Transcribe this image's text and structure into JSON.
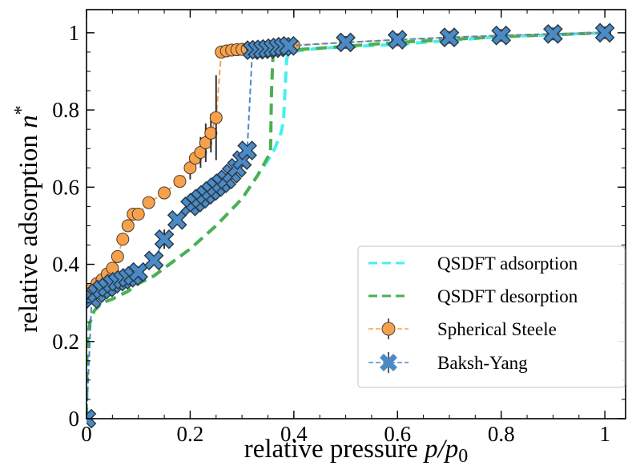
{
  "chart_data": {
    "type": "line",
    "xlabel": "relative pressure",
    "xlabel_math": "p/p",
    "xlabel_sub": "0",
    "ylabel": "relative adsorption",
    "ylabel_math": "n",
    "ylabel_sup": "*",
    "xlim": [
      0,
      1.04
    ],
    "ylim": [
      0,
      1.06
    ],
    "xticks": [
      0,
      0.2,
      0.4,
      0.6,
      0.8,
      1
    ],
    "xtick_labels": [
      "0",
      "0.2",
      "0.4",
      "0.6",
      "0.8",
      "1"
    ],
    "yticks": [
      0,
      0.2,
      0.4,
      0.6,
      0.8,
      1
    ],
    "ytick_labels": [
      "0",
      "0.2",
      "0.4",
      "0.6",
      "0.8",
      "1"
    ],
    "grid": false,
    "legend_position": "bottom-right",
    "series": [
      {
        "name": "QSDFT adsorption",
        "color": "#44f0ef",
        "style": "dashed",
        "x": [
          0,
          0.001,
          0.003,
          0.007,
          0.015,
          0.03,
          0.05,
          0.08,
          0.1,
          0.13,
          0.16,
          0.2,
          0.25,
          0.3,
          0.33,
          0.36,
          0.375,
          0.38,
          0.383,
          0.386,
          0.39,
          0.45,
          0.6,
          0.8,
          1.0
        ],
        "y": [
          0,
          0.17,
          0.22,
          0.25,
          0.28,
          0.3,
          0.31,
          0.33,
          0.35,
          0.37,
          0.4,
          0.44,
          0.5,
          0.57,
          0.63,
          0.69,
          0.74,
          0.77,
          0.85,
          0.93,
          0.95,
          0.96,
          0.97,
          0.99,
          1.0
        ]
      },
      {
        "name": "QSDFT desorption",
        "color": "#4caf50",
        "style": "dashed",
        "x": [
          0,
          0.001,
          0.003,
          0.007,
          0.015,
          0.03,
          0.05,
          0.08,
          0.1,
          0.13,
          0.16,
          0.2,
          0.25,
          0.3,
          0.33,
          0.355,
          0.357,
          0.36,
          0.39,
          0.45,
          0.6,
          0.8,
          1.0
        ],
        "y": [
          0,
          0.17,
          0.22,
          0.25,
          0.28,
          0.3,
          0.31,
          0.33,
          0.35,
          0.37,
          0.4,
          0.44,
          0.5,
          0.57,
          0.63,
          0.69,
          0.85,
          0.95,
          0.955,
          0.96,
          0.975,
          0.99,
          1.0
        ]
      },
      {
        "name": "Spherical Steele",
        "color": "#f7a14c",
        "marker": "circle",
        "x": [
          0.005,
          0.02,
          0.03,
          0.04,
          0.05,
          0.06,
          0.07,
          0.08,
          0.09,
          0.1,
          0.12,
          0.15,
          0.18,
          0.2,
          0.21,
          0.22,
          0.23,
          0.24,
          0.25,
          0.26,
          0.27,
          0.28,
          0.29,
          0.3,
          0.31,
          0.32,
          0.33,
          0.34,
          0.35,
          0.36,
          0.37,
          0.38,
          0.39,
          0.4,
          0.5,
          0.6,
          0.7,
          0.8,
          0.9,
          1.0
        ],
        "y": [
          0.335,
          0.35,
          0.36,
          0.375,
          0.39,
          0.42,
          0.465,
          0.5,
          0.53,
          0.53,
          0.56,
          0.585,
          0.615,
          0.65,
          0.675,
          0.69,
          0.715,
          0.74,
          0.78,
          0.95,
          0.953,
          0.955,
          0.956,
          0.957,
          0.958,
          0.96,
          0.961,
          0.962,
          0.963,
          0.964,
          0.965,
          0.966,
          0.967,
          0.968,
          0.975,
          0.982,
          0.988,
          0.993,
          0.997,
          1.0
        ],
        "yerr": [
          0,
          0,
          0,
          0,
          0,
          0,
          0,
          0,
          0,
          0,
          0,
          0,
          0,
          0.03,
          0,
          0.04,
          0.05,
          0.05,
          0.11,
          0,
          0,
          0,
          0,
          0,
          0,
          0,
          0,
          0,
          0,
          0,
          0,
          0,
          0,
          0,
          0,
          0,
          0,
          0,
          0,
          0
        ]
      },
      {
        "name": "Baksh-Yang",
        "color": "#4a8bc6",
        "marker": "x",
        "x": [
          0.0,
          0.01,
          0.02,
          0.03,
          0.04,
          0.05,
          0.06,
          0.07,
          0.08,
          0.09,
          0.1,
          0.13,
          0.15,
          0.175,
          0.2,
          0.21,
          0.22,
          0.23,
          0.24,
          0.25,
          0.26,
          0.27,
          0.28,
          0.29,
          0.3,
          0.31,
          0.32,
          0.33,
          0.34,
          0.35,
          0.36,
          0.37,
          0.38,
          0.39,
          0.5,
          0.6,
          0.7,
          0.8,
          0.9,
          1.0
        ],
        "y": [
          0.0,
          0.31,
          0.325,
          0.335,
          0.34,
          0.35,
          0.355,
          0.36,
          0.365,
          0.37,
          0.38,
          0.41,
          0.465,
          0.515,
          0.55,
          0.56,
          0.57,
          0.58,
          0.59,
          0.6,
          0.61,
          0.62,
          0.635,
          0.65,
          0.67,
          0.695,
          0.955,
          0.956,
          0.957,
          0.958,
          0.96,
          0.962,
          0.964,
          0.966,
          0.975,
          0.982,
          0.988,
          0.993,
          0.997,
          1.0
        ],
        "yerr": [
          0,
          0,
          0,
          0,
          0,
          0,
          0,
          0,
          0,
          0,
          0,
          0,
          0.025,
          0,
          0,
          0,
          0,
          0,
          0,
          0,
          0,
          0,
          0,
          0,
          0,
          0,
          0,
          0,
          0,
          0,
          0,
          0,
          0,
          0,
          0,
          0,
          0,
          0,
          0,
          0
        ]
      }
    ]
  }
}
